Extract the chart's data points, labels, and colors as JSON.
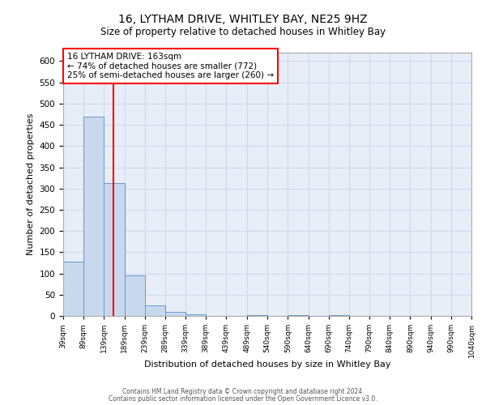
{
  "title": "16, LYTHAM DRIVE, WHITLEY BAY, NE25 9HZ",
  "subtitle": "Size of property relative to detached houses in Whitley Bay",
  "xlabel": "Distribution of detached houses by size in Whitley Bay",
  "ylabel": "Number of detached properties",
  "bar_color": "#c8d9ee",
  "bar_edge_color": "#6699cc",
  "bg_color": "#e8eef8",
  "grid_color": "#d0d8e8",
  "red_line_x": 163,
  "annotation_title": "16 LYTHAM DRIVE: 163sqm",
  "annotation_line1": "← 74% of detached houses are smaller (772)",
  "annotation_line2": "25% of semi-detached houses are larger (260) →",
  "bins": [
    39,
    89,
    139,
    189,
    239,
    289,
    339,
    389,
    439,
    489,
    540,
    590,
    640,
    690,
    740,
    790,
    840,
    890,
    940,
    990,
    1040
  ],
  "counts": [
    128,
    470,
    312,
    95,
    25,
    10,
    3,
    0,
    0,
    2,
    0,
    2,
    0,
    2,
    0,
    0,
    0,
    0,
    0,
    0
  ],
  "ylim": [
    0,
    620
  ],
  "yticks": [
    0,
    50,
    100,
    150,
    200,
    250,
    300,
    350,
    400,
    450,
    500,
    550,
    600
  ],
  "footer1": "Contains HM Land Registry data © Crown copyright and database right 2024.",
  "footer2": "Contains public sector information licensed under the Open Government Licence v3.0."
}
